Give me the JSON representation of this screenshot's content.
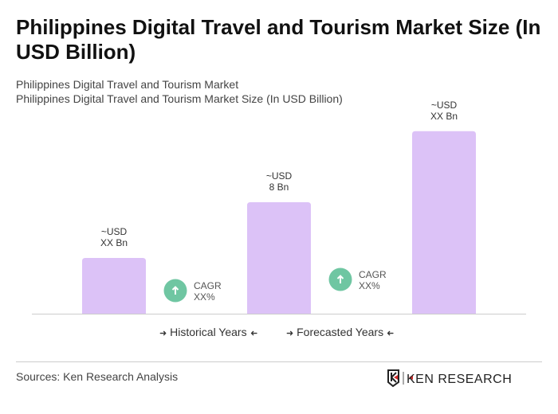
{
  "title": "Philippines Digital Travel and Tourism Market Size (In USD Billion)",
  "subtitle1": "Philippines Digital Travel and Tourism Market",
  "subtitle2": "Philippines Digital Travel and Tourism Market Size (In USD Billion)",
  "chart_data": {
    "type": "bar",
    "values": [
      4,
      8,
      13.1
    ],
    "data_labels": [
      [
        "~USD",
        "XX Bn"
      ],
      [
        "~USD",
        "8 Bn"
      ],
      [
        "~USD",
        "XX Bn"
      ]
    ],
    "cagr": [
      {
        "label": "CAGR",
        "value": "XX%"
      },
      {
        "label": "CAGR",
        "value": "XX%"
      }
    ],
    "bar_color": "#dcc2f7",
    "cagr_color": "#6fc6a2",
    "ylim": [
      0,
      14
    ],
    "grid": false
  },
  "legend": {
    "historical": "Historical Years",
    "forecasted": "Forecasted Years",
    "arrow_right": "➜",
    "arrow_left": "➜"
  },
  "sources": "Sources: Ken Research Analysis",
  "logo_text": "KEN RESEARCH"
}
